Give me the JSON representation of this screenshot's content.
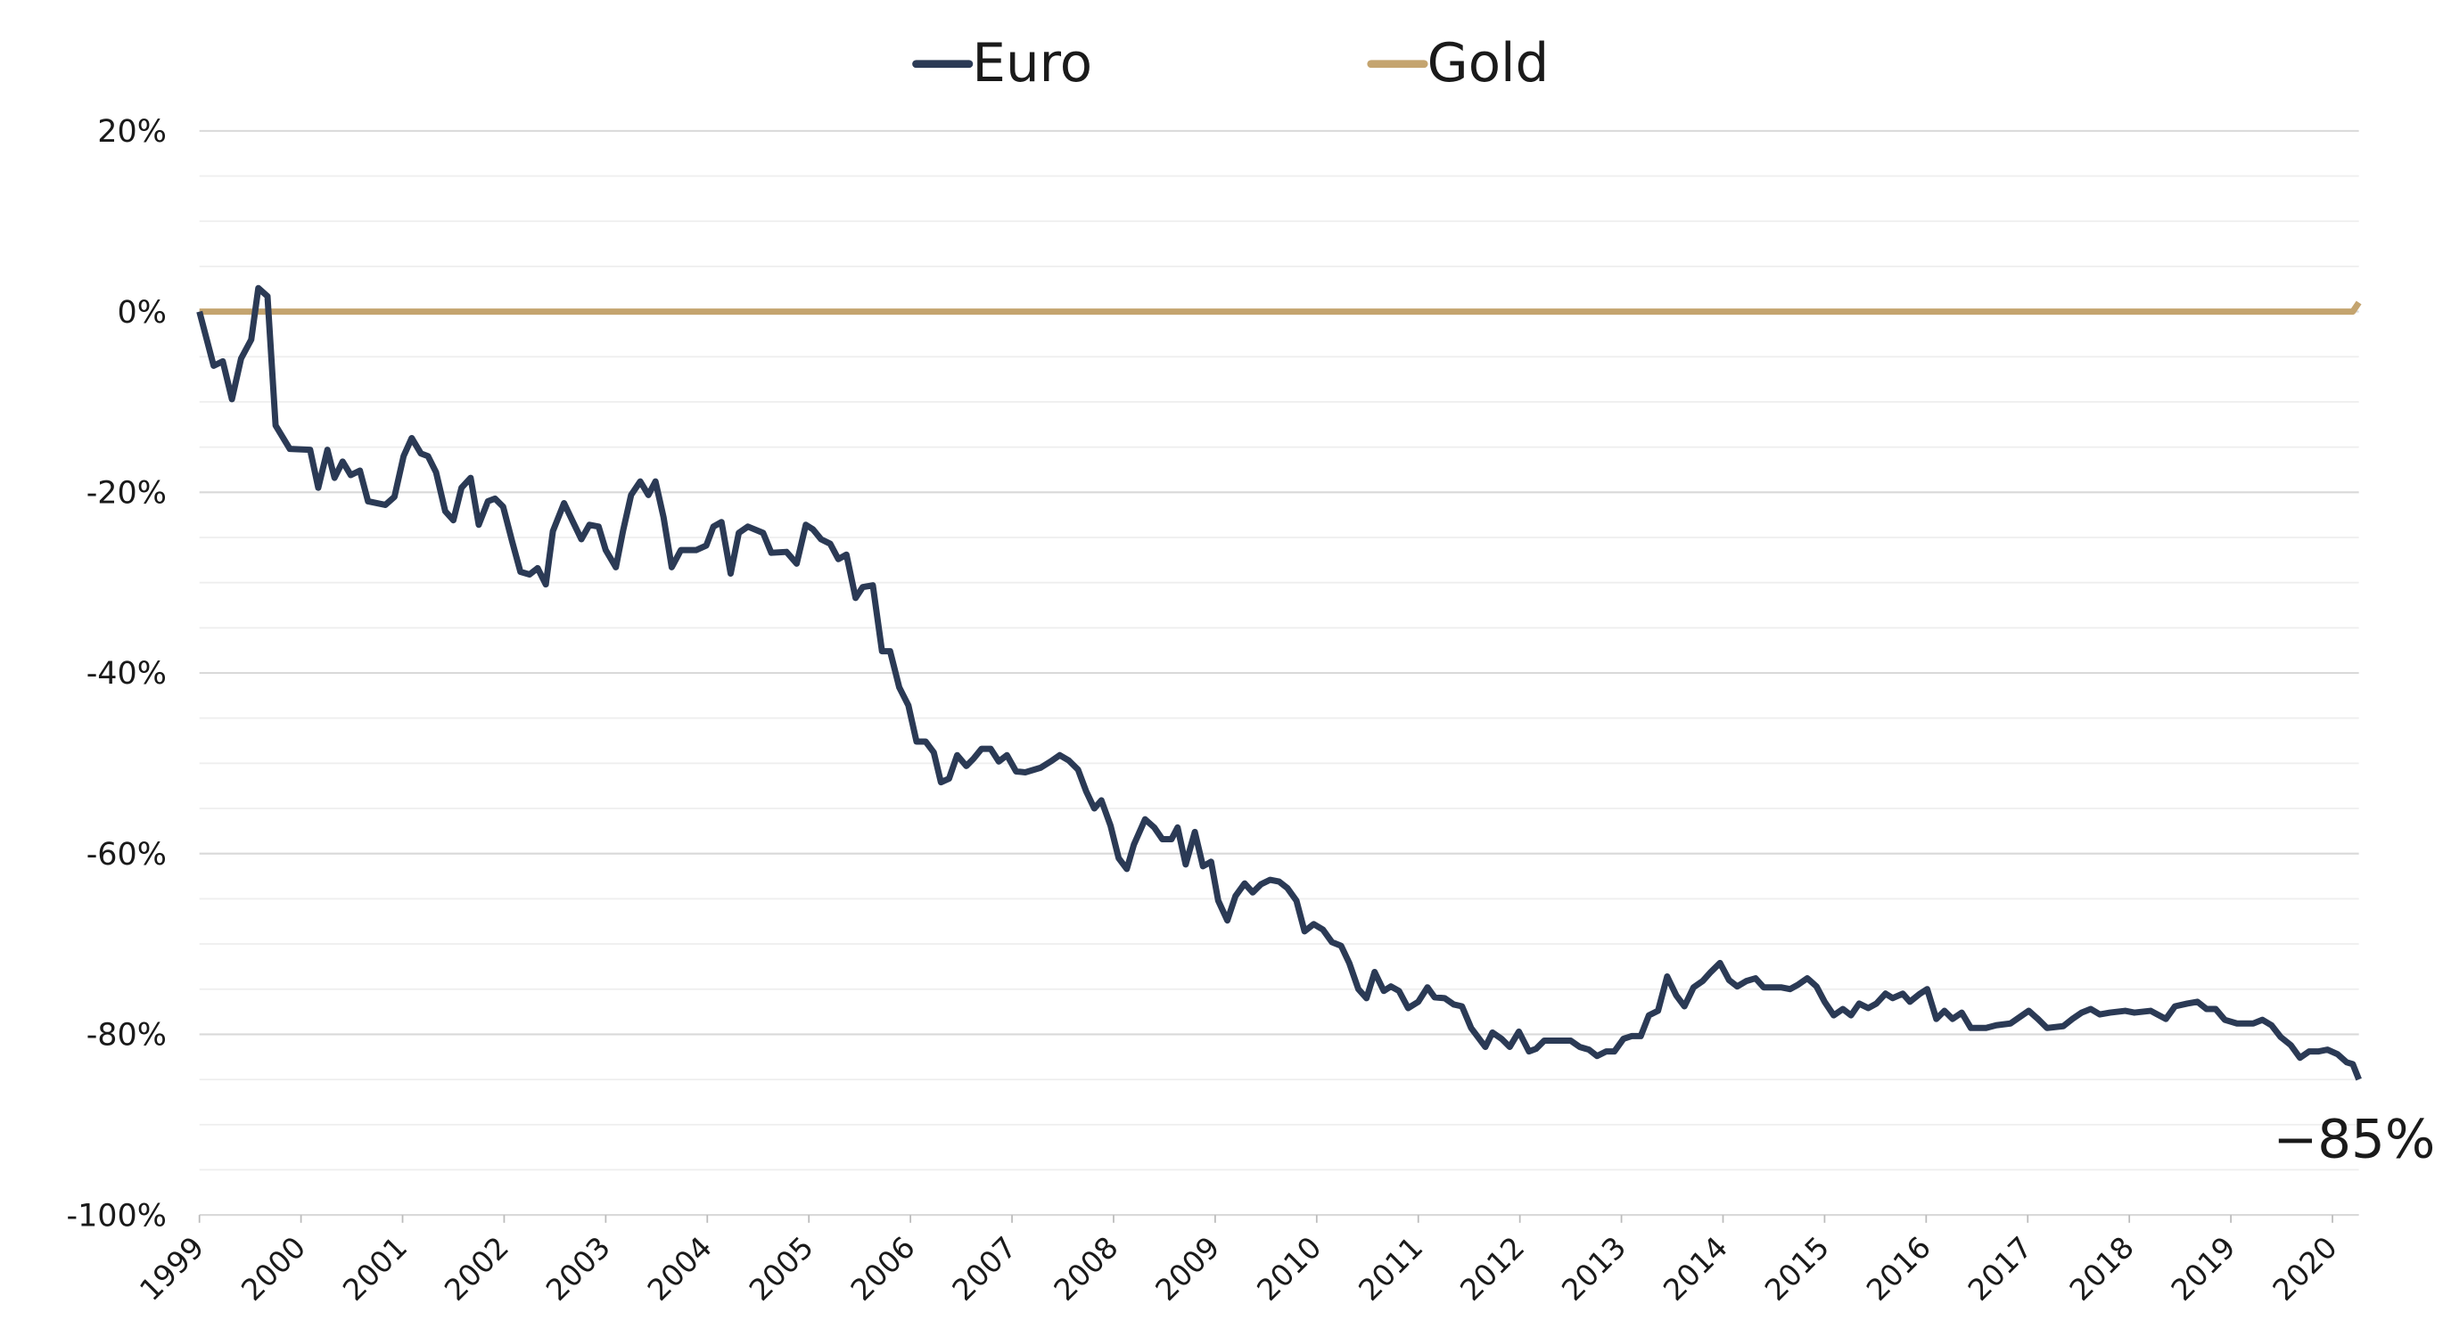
{
  "chart_data": {
    "type": "line",
    "legend": "top",
    "annotation": "−85%",
    "xlim": [
      1999,
      2020.26
    ],
    "xticks": [
      1999,
      2000,
      2001,
      2002,
      2003,
      2004,
      2005,
      2006,
      2007,
      2008,
      2009,
      2010,
      2011,
      2012,
      2013,
      2014,
      2015,
      2016,
      2017,
      2018,
      2019,
      2020
    ],
    "ylim": [
      -100,
      20
    ],
    "yticks": [
      {
        "value": 20,
        "label": "20%"
      },
      {
        "value": 0,
        "label": "0%"
      },
      {
        "value": -20,
        "label": "-20%"
      },
      {
        "value": -40,
        "label": "-40%"
      },
      {
        "value": -60,
        "label": "-60%"
      },
      {
        "value": -80,
        "label": "-80%"
      },
      {
        "value": -100,
        "label": "-100%"
      }
    ],
    "minor_yticks": [
      15,
      10,
      5,
      -5,
      -10,
      -15,
      -25,
      -30,
      -35,
      -45,
      -50,
      -55,
      -65,
      -70,
      -75,
      -85,
      -90,
      -95
    ],
    "grid": true,
    "series": [
      {
        "name": "Euro",
        "color": "#2b3a55",
        "x": [
          1999.0,
          1999.14,
          1999.23,
          1999.32,
          1999.41,
          1999.51,
          1999.58,
          1999.67,
          1999.75,
          1999.89,
          2000.09,
          2000.17,
          2000.26,
          2000.33,
          2000.41,
          2000.49,
          2000.58,
          2000.66,
          2000.83,
          2000.92,
          2001.01,
          2001.09,
          2001.18,
          2001.25,
          2001.33,
          2001.42,
          2001.5,
          2001.58,
          2001.67,
          2001.75,
          2001.84,
          2001.91,
          2001.99,
          2002.08,
          2002.16,
          2002.25,
          2002.33,
          2002.41,
          2002.48,
          2002.59,
          2002.67,
          2002.76,
          2002.84,
          2002.93,
          2003.0,
          2003.1,
          2003.17,
          2003.25,
          2003.34,
          2003.42,
          2003.49,
          2003.57,
          2003.65,
          2003.74,
          2003.89,
          2003.99,
          2004.06,
          2004.14,
          2004.23,
          2004.31,
          2004.4,
          2004.55,
          2004.63,
          2004.78,
          2004.88,
          2004.97,
          2005.04,
          2005.12,
          2005.21,
          2005.29,
          2005.37,
          2005.46,
          2005.53,
          2005.63,
          2005.72,
          2005.8,
          2005.89,
          2005.98,
          2006.06,
          2006.15,
          2006.23,
          2006.3,
          2006.38,
          2006.46,
          2006.55,
          2006.62,
          2006.7,
          2006.79,
          2006.87,
          2006.95,
          2007.04,
          2007.13,
          2007.28,
          2007.38,
          2007.47,
          2007.56,
          2007.65,
          2007.73,
          2007.81,
          2007.88,
          2007.97,
          2008.05,
          2008.13,
          2008.2,
          2008.31,
          2008.4,
          2008.48,
          2008.57,
          2008.63,
          2008.71,
          2008.8,
          2008.88,
          2008.96,
          2009.03,
          2009.12,
          2009.2,
          2009.29,
          2009.37,
          2009.45,
          2009.54,
          2009.63,
          2009.71,
          2009.8,
          2009.88,
          2009.97,
          2010.06,
          2010.15,
          2010.24,
          2010.32,
          2010.41,
          2010.49,
          2010.57,
          2010.66,
          2010.73,
          2010.81,
          2010.9,
          2011.0,
          2011.09,
          2011.16,
          2011.26,
          2011.35,
          2011.43,
          2011.52,
          2011.66,
          2011.73,
          2011.82,
          2011.9,
          2011.99,
          2012.09,
          2012.16,
          2012.24,
          2012.5,
          2012.59,
          2012.68,
          2012.76,
          2012.85,
          2012.93,
          2013.02,
          2013.1,
          2013.19,
          2013.27,
          2013.36,
          2013.45,
          2013.54,
          2013.62,
          2013.71,
          2013.8,
          2013.88,
          2013.97,
          2014.06,
          2014.14,
          2014.23,
          2014.32,
          2014.4,
          2014.57,
          2014.66,
          2014.74,
          2014.83,
          2014.92,
          2015.0,
          2015.09,
          2015.18,
          2015.26,
          2015.34,
          2015.43,
          2015.51,
          2015.6,
          2015.67,
          2015.77,
          2015.84,
          2015.94,
          2016.01,
          2016.1,
          2016.18,
          2016.26,
          2016.35,
          2016.44,
          2016.59,
          2016.69,
          2016.83,
          2016.92,
          2017.01,
          2017.1,
          2017.19,
          2017.35,
          2017.44,
          2017.53,
          2017.62,
          2017.71,
          2017.81,
          2017.96,
          2018.05,
          2018.21,
          2018.36,
          2018.45,
          2018.57,
          2018.67,
          2018.76,
          2018.85,
          2018.94,
          2019.06,
          2019.22,
          2019.31,
          2019.4,
          2019.49,
          2019.59,
          2019.68,
          2019.77,
          2019.86,
          2019.95,
          2020.05,
          2020.14,
          2020.2,
          2020.26
        ],
        "values": [
          0,
          -6,
          -5.5,
          -9.7,
          -5.2,
          -3.1,
          2.6,
          1.7,
          -12.6,
          -15.2,
          -15.3,
          -19.5,
          -15.3,
          -18.4,
          -16.6,
          -18.1,
          -17.6,
          -21,
          -21.4,
          -20.5,
          -16,
          -14,
          -15.7,
          -16,
          -17.8,
          -22.1,
          -23.1,
          -19.5,
          -18.4,
          -23.6,
          -21,
          -20.7,
          -21.6,
          -25.5,
          -28.8,
          -29.1,
          -28.4,
          -30.2,
          -24.3,
          -21.2,
          -23.1,
          -25.2,
          -23.6,
          -23.8,
          -26.4,
          -28.3,
          -24.3,
          -20.3,
          -18.8,
          -20.3,
          -18.8,
          -22.8,
          -28.3,
          -26.4,
          -26.4,
          -25.9,
          -23.8,
          -23.3,
          -29,
          -24.5,
          -23.8,
          -24.5,
          -26.7,
          -26.6,
          -27.9,
          -23.6,
          -24.1,
          -25.2,
          -25.7,
          -27.4,
          -26.9,
          -31.7,
          -30.5,
          -30.3,
          -37.6,
          -37.6,
          -41.6,
          -43.6,
          -47.6,
          -47.6,
          -48.8,
          -52.1,
          -51.7,
          -49.1,
          -50.3,
          -49.5,
          -48.4,
          -48.4,
          -49.8,
          -49.1,
          -50.9,
          -51,
          -50.5,
          -49.8,
          -49.1,
          -49.7,
          -50.7,
          -53.1,
          -55,
          -54.1,
          -56.9,
          -60.5,
          -61.7,
          -59,
          -56.2,
          -57.1,
          -58.4,
          -58.4,
          -57.1,
          -61.2,
          -57.6,
          -61.4,
          -60.9,
          -65.2,
          -67.4,
          -64.7,
          -63.3,
          -64.3,
          -63.4,
          -62.9,
          -63.1,
          -63.8,
          -65.2,
          -68.6,
          -67.8,
          -68.4,
          -69.8,
          -70.2,
          -72.1,
          -75,
          -76,
          -73.1,
          -75.2,
          -74.7,
          -75.2,
          -77.1,
          -76.4,
          -74.8,
          -75.9,
          -76,
          -76.7,
          -76.9,
          -79.3,
          -81.4,
          -79.8,
          -80.5,
          -81.4,
          -79.7,
          -81.9,
          -81.6,
          -80.7,
          -80.7,
          -81.4,
          -81.7,
          -82.4,
          -81.9,
          -81.9,
          -80.5,
          -80.2,
          -80.2,
          -77.9,
          -77.4,
          -73.6,
          -75.7,
          -76.9,
          -74.8,
          -74.1,
          -73.1,
          -72.1,
          -74,
          -74.7,
          -74.1,
          -73.8,
          -74.8,
          -74.8,
          -75,
          -74.5,
          -73.8,
          -74.7,
          -76.4,
          -77.9,
          -77.2,
          -77.9,
          -76.6,
          -77.1,
          -76.6,
          -75.5,
          -76,
          -75.5,
          -76.4,
          -75.5,
          -75,
          -78.3,
          -77.4,
          -78.3,
          -77.6,
          -79.3,
          -79.3,
          -79,
          -78.8,
          -78.1,
          -77.4,
          -78.3,
          -79.3,
          -79.1,
          -78.3,
          -77.6,
          -77.2,
          -77.8,
          -77.6,
          -77.4,
          -77.6,
          -77.4,
          -78.3,
          -76.9,
          -76.6,
          -76.4,
          -77.2,
          -77.2,
          -78.4,
          -78.8,
          -78.8,
          -78.4,
          -79,
          -80.3,
          -81.2,
          -82.6,
          -81.9,
          -81.9,
          -81.7,
          -82.2,
          -83.1,
          -83.3,
          -85
        ]
      },
      {
        "name": "Gold",
        "color": "#c4a46f",
        "x": [
          1999,
          2020.2,
          2020.26
        ],
        "values": [
          0,
          0,
          1
        ]
      }
    ]
  }
}
